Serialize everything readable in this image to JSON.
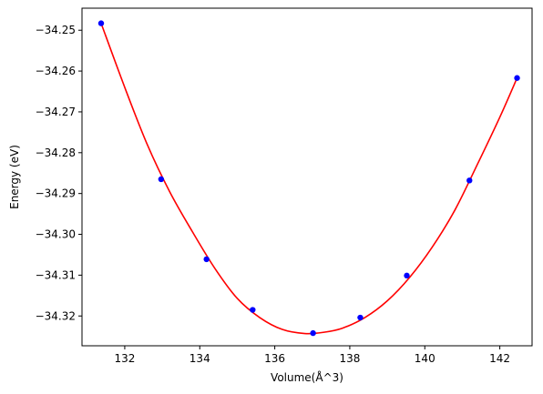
{
  "chart_data": {
    "type": "scatter",
    "title": "",
    "xlabel": "Volume(Å^3)",
    "ylabel": "Energy (eV)",
    "xlim": [
      130.86,
      142.86
    ],
    "ylim": [
      -34.3273,
      -34.2446
    ],
    "x_ticks": [
      132,
      134,
      136,
      138,
      140,
      142
    ],
    "x_tick_labels": [
      "132",
      "134",
      "136",
      "138",
      "140",
      "142"
    ],
    "y_ticks": [
      -34.25,
      -34.26,
      -34.27,
      -34.28,
      -34.29,
      -34.3,
      -34.31,
      -34.32
    ],
    "y_tick_labels": [
      "−34.25",
      "−34.26",
      "−34.27",
      "−34.28",
      "−34.29",
      "−34.30",
      "−34.31",
      "−34.32"
    ],
    "grid": false,
    "series": [
      {
        "kind": "points",
        "color": "#0000ff",
        "x": [
          131.37,
          132.97,
          134.18,
          135.41,
          137.02,
          138.28,
          139.52,
          141.19,
          142.46
        ],
        "y": [
          -34.2483,
          -34.2865,
          -34.3061,
          -34.3185,
          -34.3242,
          -34.3204,
          -34.3101,
          -34.2868,
          -34.2617
        ]
      },
      {
        "kind": "fit-curve",
        "color": "#ff0000",
        "x": [
          131.37,
          132.0,
          132.6,
          133.2,
          133.8,
          134.4,
          135.0,
          135.6,
          136.2,
          136.8,
          137.3,
          137.8,
          138.4,
          139.0,
          139.6,
          140.2,
          140.8,
          141.4,
          142.0,
          142.46
        ],
        "y": [
          -34.2483,
          -34.264,
          -34.278,
          -34.2896,
          -34.2993,
          -34.3083,
          -34.3157,
          -34.3204,
          -34.3233,
          -34.3243,
          -34.324,
          -34.323,
          -34.3204,
          -34.3163,
          -34.3105,
          -34.3031,
          -34.2941,
          -34.2829,
          -34.2713,
          -34.2617
        ]
      }
    ]
  }
}
